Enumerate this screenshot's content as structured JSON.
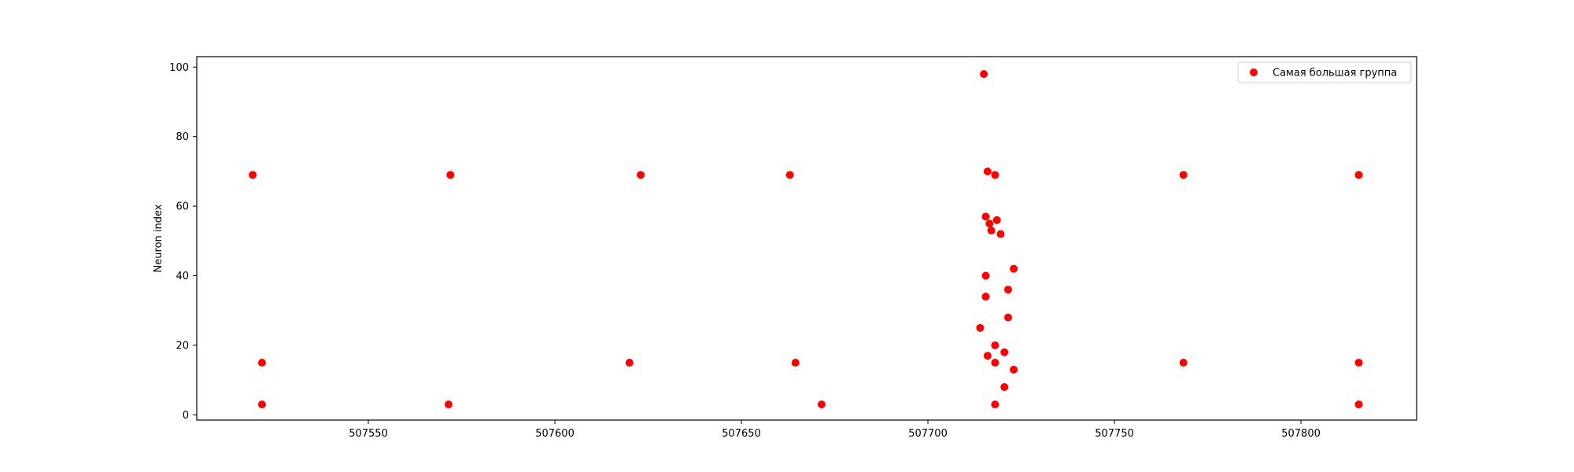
{
  "chart_data": {
    "type": "scatter",
    "title": "",
    "xlabel": "",
    "ylabel": "Neuron index",
    "xlim": [
      507504,
      507831
    ],
    "ylim": [
      -1.5,
      103
    ],
    "xticks": [
      507550,
      507600,
      507650,
      507700,
      507750,
      507800
    ],
    "xtick_labels": [
      "507550",
      "507600",
      "507650",
      "507700",
      "507750",
      "507800"
    ],
    "yticks": [
      0,
      20,
      40,
      60,
      80,
      100
    ],
    "ytick_labels": [
      "0",
      "20",
      "40",
      "60",
      "80",
      "100"
    ],
    "grid": false,
    "legend_position": "top-right",
    "series": [
      {
        "name": "Самая большая группа",
        "color": "#ff0000",
        "marker": "circle",
        "points": [
          {
            "x": 507519.0,
            "y": 69
          },
          {
            "x": 507521.5,
            "y": 15
          },
          {
            "x": 507521.5,
            "y": 3
          },
          {
            "x": 507572.0,
            "y": 69
          },
          {
            "x": 507571.5,
            "y": 3
          },
          {
            "x": 507623.0,
            "y": 69
          },
          {
            "x": 507620.0,
            "y": 15
          },
          {
            "x": 507663.0,
            "y": 69
          },
          {
            "x": 507664.5,
            "y": 15
          },
          {
            "x": 507671.5,
            "y": 3
          },
          {
            "x": 507715.0,
            "y": 98
          },
          {
            "x": 507716.0,
            "y": 70
          },
          {
            "x": 507718.0,
            "y": 69
          },
          {
            "x": 507715.5,
            "y": 57
          },
          {
            "x": 507718.5,
            "y": 56
          },
          {
            "x": 507716.5,
            "y": 55
          },
          {
            "x": 507717.0,
            "y": 53
          },
          {
            "x": 507719.5,
            "y": 52
          },
          {
            "x": 507723.0,
            "y": 42
          },
          {
            "x": 507715.5,
            "y": 40
          },
          {
            "x": 507721.5,
            "y": 36
          },
          {
            "x": 507715.5,
            "y": 34
          },
          {
            "x": 507721.5,
            "y": 28
          },
          {
            "x": 507714.0,
            "y": 25
          },
          {
            "x": 507718.0,
            "y": 20
          },
          {
            "x": 507720.5,
            "y": 18
          },
          {
            "x": 507716.0,
            "y": 17
          },
          {
            "x": 507718.0,
            "y": 15
          },
          {
            "x": 507723.0,
            "y": 13
          },
          {
            "x": 507720.5,
            "y": 8
          },
          {
            "x": 507718.0,
            "y": 3
          },
          {
            "x": 507768.5,
            "y": 69
          },
          {
            "x": 507768.5,
            "y": 15
          },
          {
            "x": 507815.5,
            "y": 69
          },
          {
            "x": 507815.5,
            "y": 15
          },
          {
            "x": 507815.5,
            "y": 3
          }
        ]
      }
    ]
  }
}
